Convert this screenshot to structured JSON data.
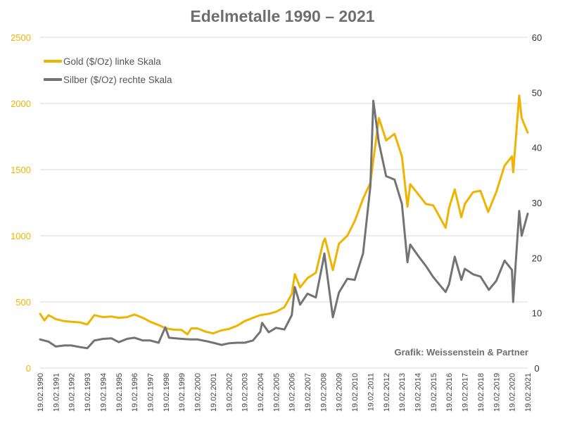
{
  "chart_data": {
    "type": "line",
    "title": "Edelmetalle 1990 – 2021",
    "credit": "Grafik: Weissenstein & Partner",
    "grid": true,
    "legend_position": "top-left",
    "left_axis": {
      "ylim": [
        0,
        2500
      ],
      "ticks": [
        0,
        500,
        1000,
        1500,
        2000,
        2500
      ],
      "color": "#F0B400"
    },
    "right_axis": {
      "ylim": [
        0,
        60
      ],
      "ticks": [
        0,
        10,
        20,
        30,
        40,
        50,
        60
      ],
      "color": "#333333"
    },
    "x_ticks": [
      "19.02.1990",
      "19.02.1991",
      "19.02.1992",
      "19.02.1993",
      "19.02.1994",
      "19.02.1995",
      "19.02.1996",
      "19.02.1997",
      "19.02.1998",
      "19.02.1999",
      "19.02.2000",
      "19.02.2001",
      "19.02.2002",
      "19.02.2003",
      "19.02.2004",
      "19.02.2005",
      "19.02.2006",
      "19.02.2007",
      "19.02.2008",
      "19.02.2009",
      "19.02.2010",
      "19.02.2011",
      "19.02.2012",
      "19.02.2013",
      "19.02.2014",
      "19.02.2015",
      "19.02.2016",
      "19.02.2017",
      "19.02.2018",
      "19.02.2019",
      "19.02.2020",
      "19.02.2021"
    ],
    "series": [
      {
        "name": "Gold ($/Oz) linke Skala",
        "axis": "left",
        "color": "#F0B400",
        "points": [
          [
            "1990-02-19",
            410
          ],
          [
            "1990-06-01",
            360
          ],
          [
            "1990-09-01",
            400
          ],
          [
            "1991-02-19",
            370
          ],
          [
            "1991-09-01",
            355
          ],
          [
            "1992-02-19",
            350
          ],
          [
            "1992-09-01",
            345
          ],
          [
            "1993-02-19",
            330
          ],
          [
            "1993-08-01",
            400
          ],
          [
            "1994-02-19",
            385
          ],
          [
            "1994-09-01",
            390
          ],
          [
            "1995-02-19",
            380
          ],
          [
            "1995-09-01",
            385
          ],
          [
            "1996-02-19",
            405
          ],
          [
            "1996-09-01",
            380
          ],
          [
            "1997-02-19",
            350
          ],
          [
            "1997-09-01",
            325
          ],
          [
            "1998-02-19",
            300
          ],
          [
            "1998-09-01",
            290
          ],
          [
            "1999-02-19",
            288
          ],
          [
            "1999-07-01",
            255
          ],
          [
            "1999-10-01",
            300
          ],
          [
            "2000-02-19",
            300
          ],
          [
            "2000-09-01",
            275
          ],
          [
            "2001-02-19",
            262
          ],
          [
            "2001-09-01",
            285
          ],
          [
            "2002-02-19",
            295
          ],
          [
            "2002-09-01",
            320
          ],
          [
            "2003-02-19",
            355
          ],
          [
            "2003-09-01",
            380
          ],
          [
            "2004-02-19",
            400
          ],
          [
            "2004-09-01",
            410
          ],
          [
            "2005-02-19",
            425
          ],
          [
            "2005-09-01",
            460
          ],
          [
            "2006-02-19",
            560
          ],
          [
            "2006-05-01",
            710
          ],
          [
            "2006-09-01",
            610
          ],
          [
            "2007-02-19",
            680
          ],
          [
            "2007-09-01",
            720
          ],
          [
            "2008-02-19",
            950
          ],
          [
            "2008-04-01",
            980
          ],
          [
            "2008-10-01",
            740
          ],
          [
            "2009-02-19",
            940
          ],
          [
            "2009-09-01",
            1000
          ],
          [
            "2010-02-19",
            1110
          ],
          [
            "2010-09-01",
            1280
          ],
          [
            "2011-02-19",
            1400
          ],
          [
            "2011-09-05",
            1890
          ],
          [
            "2012-02-19",
            1720
          ],
          [
            "2012-09-01",
            1770
          ],
          [
            "2013-02-19",
            1600
          ],
          [
            "2013-06-28",
            1220
          ],
          [
            "2013-09-01",
            1390
          ],
          [
            "2014-02-19",
            1320
          ],
          [
            "2014-09-01",
            1240
          ],
          [
            "2015-02-19",
            1230
          ],
          [
            "2015-12-01",
            1060
          ],
          [
            "2016-02-19",
            1210
          ],
          [
            "2016-07-01",
            1350
          ],
          [
            "2016-12-01",
            1140
          ],
          [
            "2017-02-19",
            1240
          ],
          [
            "2017-09-01",
            1330
          ],
          [
            "2018-02-19",
            1340
          ],
          [
            "2018-08-15",
            1180
          ],
          [
            "2019-02-19",
            1330
          ],
          [
            "2019-09-01",
            1530
          ],
          [
            "2020-02-19",
            1600
          ],
          [
            "2020-03-19",
            1480
          ],
          [
            "2020-08-06",
            2060
          ],
          [
            "2020-10-01",
            1890
          ],
          [
            "2021-02-19",
            1780
          ]
        ]
      },
      {
        "name": "Silber ($/Oz) rechte Skala",
        "axis": "right",
        "color": "#737373",
        "points": [
          [
            "1990-02-19",
            5.2
          ],
          [
            "1990-09-01",
            4.8
          ],
          [
            "1991-02-19",
            3.9
          ],
          [
            "1991-09-01",
            4.1
          ],
          [
            "1992-02-19",
            4.1
          ],
          [
            "1992-09-01",
            3.8
          ],
          [
            "1993-02-19",
            3.6
          ],
          [
            "1993-08-01",
            5.0
          ],
          [
            "1994-02-19",
            5.3
          ],
          [
            "1994-09-01",
            5.4
          ],
          [
            "1995-02-19",
            4.7
          ],
          [
            "1995-09-01",
            5.3
          ],
          [
            "1996-02-19",
            5.5
          ],
          [
            "1996-09-01",
            5.0
          ],
          [
            "1997-02-19",
            5.0
          ],
          [
            "1997-09-01",
            4.6
          ],
          [
            "1998-02-05",
            7.4
          ],
          [
            "1998-05-01",
            5.5
          ],
          [
            "1999-02-19",
            5.3
          ],
          [
            "1999-09-01",
            5.2
          ],
          [
            "2000-02-19",
            5.2
          ],
          [
            "2000-09-01",
            4.9
          ],
          [
            "2001-02-19",
            4.6
          ],
          [
            "2001-09-01",
            4.2
          ],
          [
            "2002-02-19",
            4.5
          ],
          [
            "2002-09-01",
            4.6
          ],
          [
            "2003-02-19",
            4.6
          ],
          [
            "2003-09-01",
            5.0
          ],
          [
            "2004-02-19",
            6.6
          ],
          [
            "2004-04-01",
            8.2
          ],
          [
            "2004-09-01",
            6.5
          ],
          [
            "2005-02-19",
            7.3
          ],
          [
            "2005-09-01",
            7.0
          ],
          [
            "2006-02-19",
            9.6
          ],
          [
            "2006-05-01",
            14.7
          ],
          [
            "2006-09-01",
            11.5
          ],
          [
            "2007-02-19",
            13.5
          ],
          [
            "2007-09-01",
            12.8
          ],
          [
            "2008-02-19",
            19.5
          ],
          [
            "2008-03-17",
            20.8
          ],
          [
            "2008-10-01",
            9.2
          ],
          [
            "2009-02-19",
            13.7
          ],
          [
            "2009-09-01",
            16.2
          ],
          [
            "2010-02-19",
            16.0
          ],
          [
            "2010-09-01",
            20.8
          ],
          [
            "2011-02-19",
            33.0
          ],
          [
            "2011-04-28",
            48.5
          ],
          [
            "2011-09-01",
            41.0
          ],
          [
            "2012-02-19",
            34.8
          ],
          [
            "2012-09-01",
            34.2
          ],
          [
            "2013-02-19",
            29.8
          ],
          [
            "2013-06-28",
            19.2
          ],
          [
            "2013-09-01",
            22.4
          ],
          [
            "2014-02-19",
            20.5
          ],
          [
            "2014-09-01",
            18.5
          ],
          [
            "2015-02-19",
            16.5
          ],
          [
            "2015-12-01",
            13.8
          ],
          [
            "2016-02-19",
            15.2
          ],
          [
            "2016-07-01",
            20.2
          ],
          [
            "2016-12-01",
            16.0
          ],
          [
            "2017-02-19",
            18.0
          ],
          [
            "2017-09-01",
            17.0
          ],
          [
            "2018-02-19",
            16.6
          ],
          [
            "2018-09-01",
            14.2
          ],
          [
            "2019-02-19",
            15.8
          ],
          [
            "2019-09-01",
            19.5
          ],
          [
            "2020-02-19",
            17.8
          ],
          [
            "2020-03-18",
            12.0
          ],
          [
            "2020-08-06",
            28.5
          ],
          [
            "2020-10-01",
            24.0
          ],
          [
            "2021-02-19",
            28.0
          ]
        ]
      }
    ]
  }
}
